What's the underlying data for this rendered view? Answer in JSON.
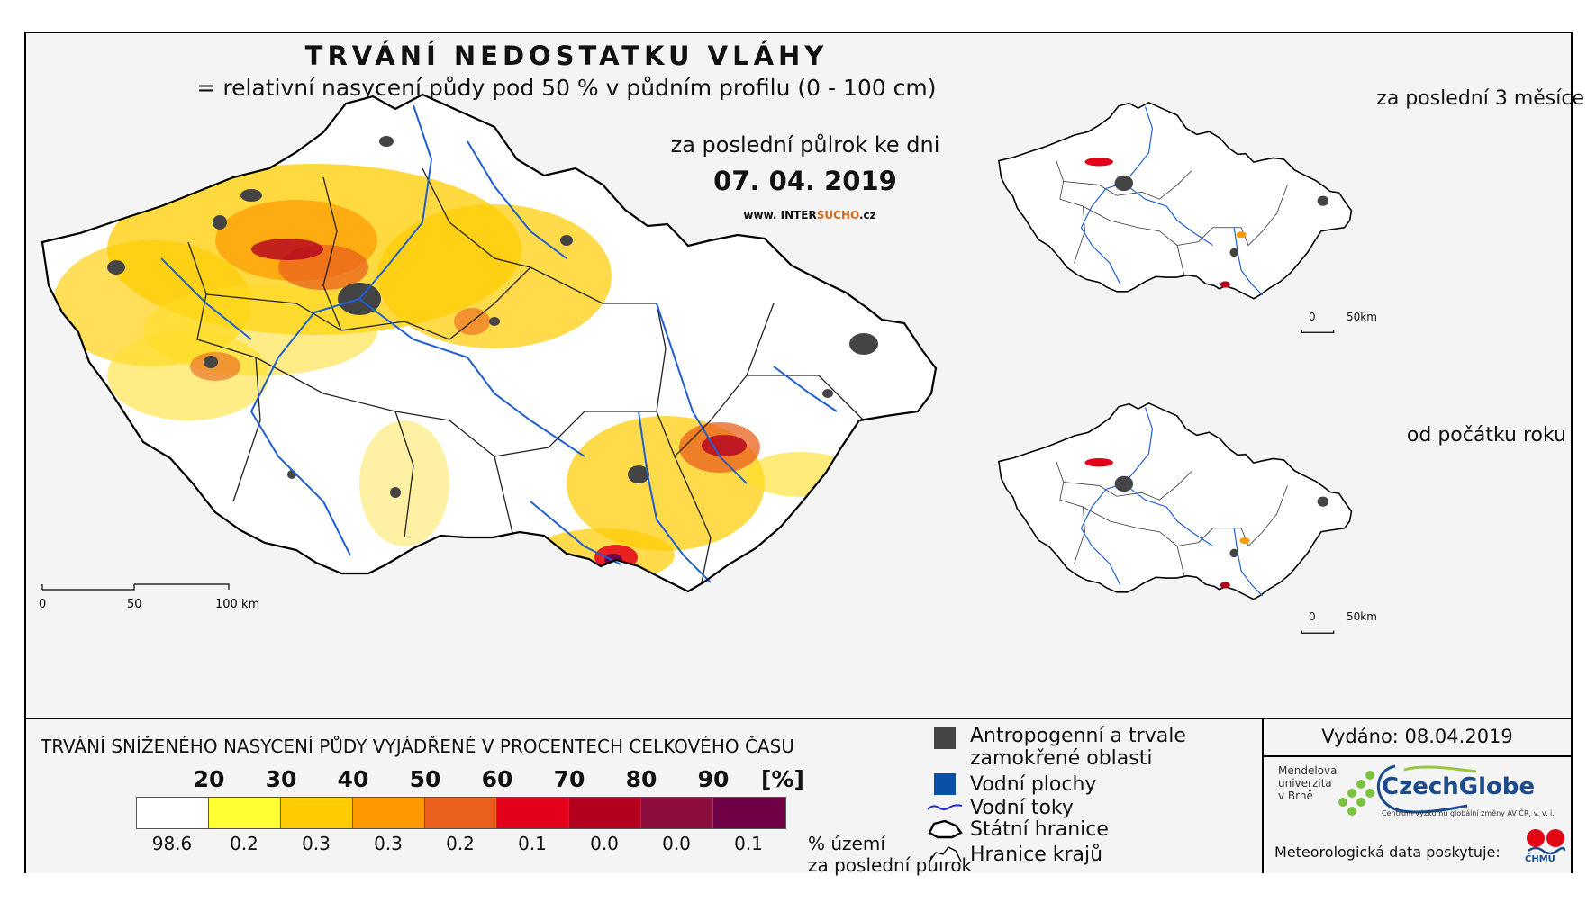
{
  "header": {
    "title": "TRVÁNÍ NEDOSTATKU VLÁHY",
    "subtitle": "= relativní nasycení půdy pod 50 % v půdním profilu (0 - 100 cm)",
    "period_label": "za poslední půlrok ke dni",
    "date": "07. 04. 2019",
    "url_prefix": "www. INTER",
    "url_accent": "SUCHO",
    "url_suffix": ".cz"
  },
  "inset_maps": [
    {
      "title": "za poslední 3 měsíce",
      "scale": [
        "0",
        "50km"
      ]
    },
    {
      "title": "od počátku roku",
      "scale": [
        "0",
        "50km"
      ]
    }
  ],
  "main_scale": [
    "0",
    "50",
    "100 km"
  ],
  "legend": {
    "title": "TRVÁNÍ SNÍŽENÉHO NASYCENÍ PŮDY VYJÁDŘENÉ V PROCENTECH CELKOVÉHO ČASU",
    "thresholds": [
      "20",
      "30",
      "40",
      "50",
      "60",
      "70",
      "80",
      "90"
    ],
    "unit": "[%]",
    "bin_colors": [
      "#ffffff",
      "#ffff33",
      "#ffcc00",
      "#ff9900",
      "#e8601c",
      "#e3001b",
      "#b3001f",
      "#8c0c3c",
      "#6e0046"
    ],
    "area_percent": [
      "98.6",
      "0.2",
      "0.3",
      "0.3",
      "0.2",
      "0.1",
      "0.0",
      "0.0",
      "0.1"
    ],
    "area_label_1": "% území",
    "area_label_2": "za poslední půlrok"
  },
  "symbols": {
    "anthropogenic_1": "Antropogenní a trvale",
    "anthropogenic_2": "zamokřené oblasti",
    "water_bodies": "Vodní plochy",
    "rivers": "Vodní toky",
    "state_border": "Státní hranice",
    "region_border": "Hranice krajů"
  },
  "colors": {
    "urban": "#444444",
    "water_body": "#0a4fa8",
    "river": "#1f5fd0"
  },
  "credits": {
    "issued": "Vydáno: 08.04.2019",
    "mendel_1": "Mendelova",
    "mendel_2": "univerzita",
    "mendel_3": "v Brně",
    "czechglobe": "CzechGlobe",
    "czechglobe_sub": "Centrum výzkumu globální změny AV ČR, v. v. i.",
    "meteo": "Meteorologická data poskytuje:",
    "chmu": "ČHMÚ"
  }
}
